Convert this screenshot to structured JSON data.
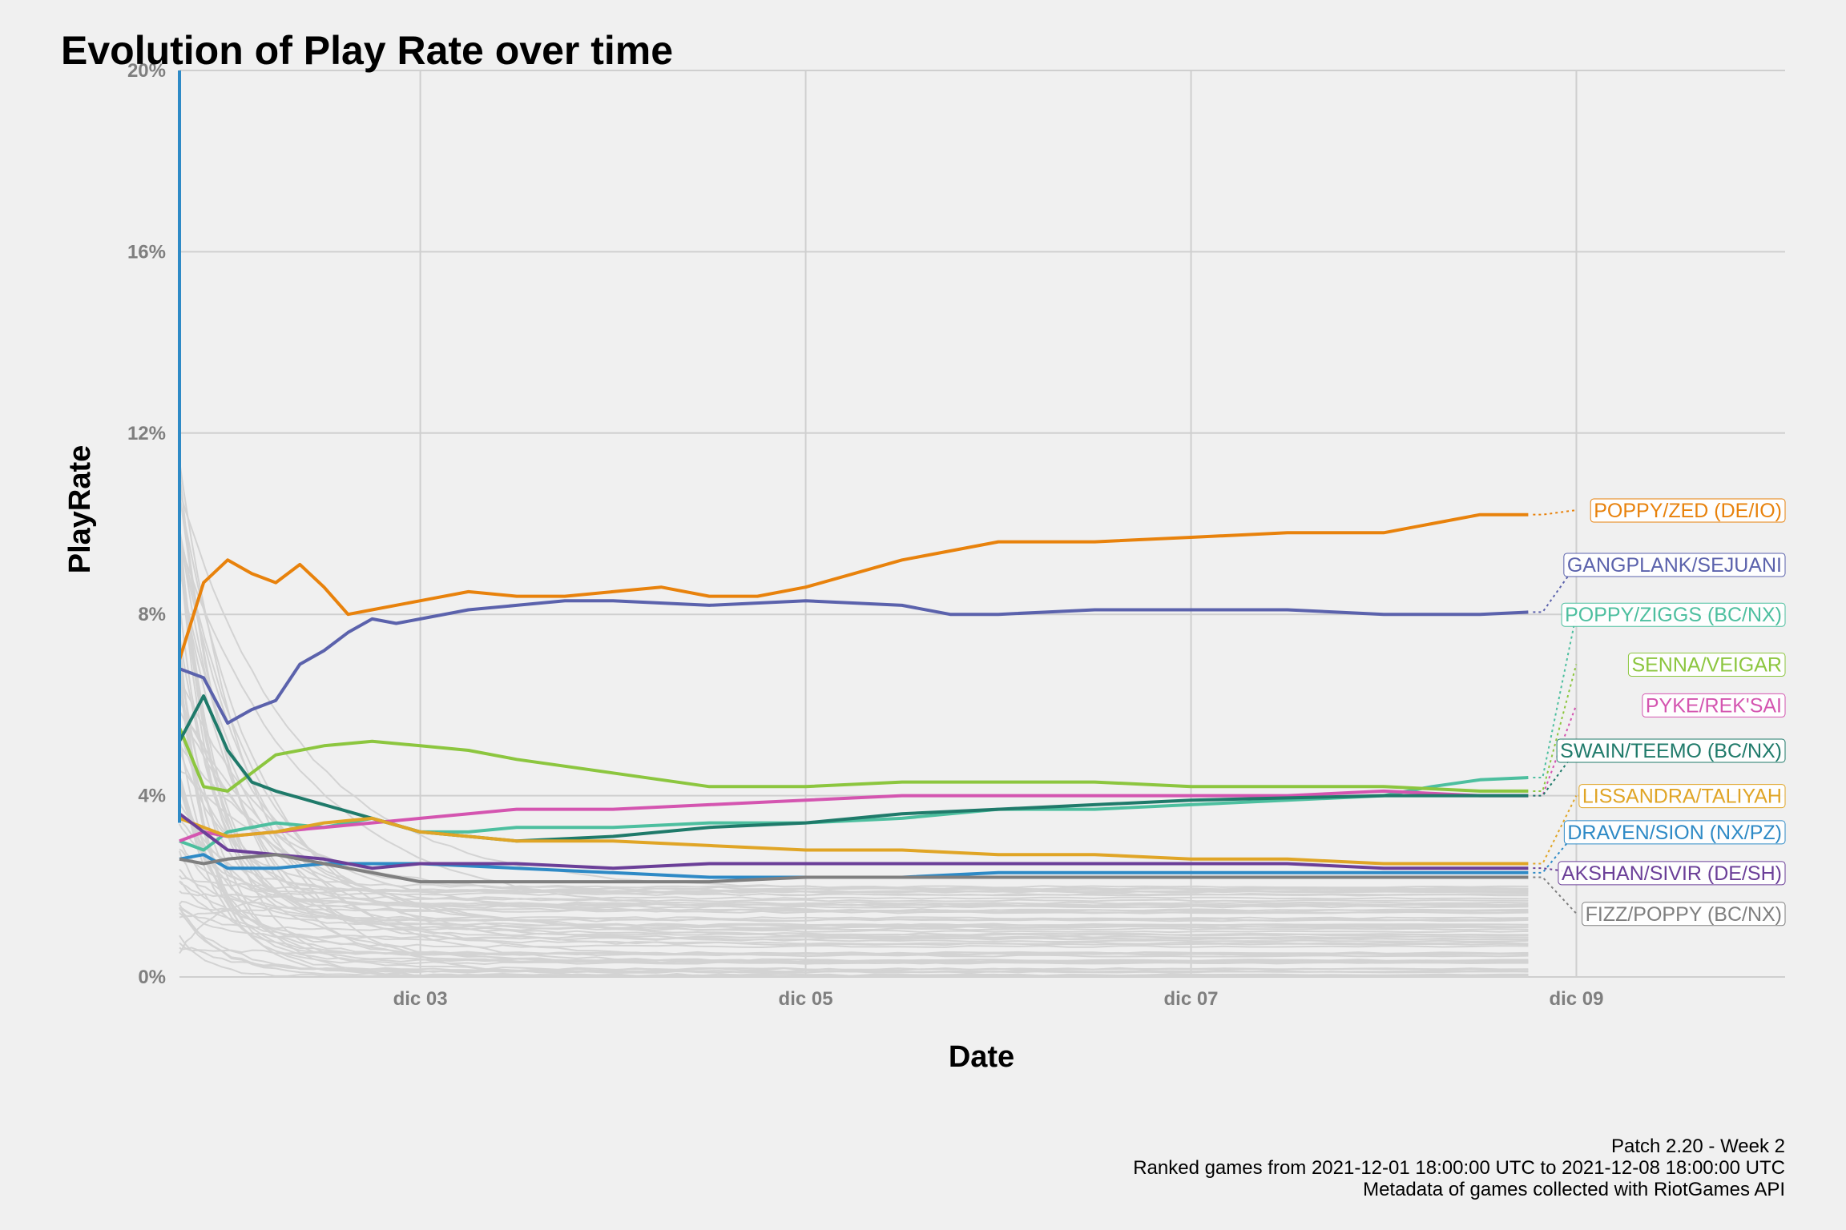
{
  "chart_data": {
    "type": "line",
    "title": "Evolution of Play Rate over time",
    "xlabel": "Date",
    "ylabel": "PlayRate",
    "x_range": [
      "2021-12-01 18:00",
      "2021-12-10 02:00"
    ],
    "x_ticks": [
      {
        "label": "dic 03",
        "date": "2021-12-03"
      },
      {
        "label": "dic 05",
        "date": "2021-12-05"
      },
      {
        "label": "dic 07",
        "date": "2021-12-07"
      },
      {
        "label": "dic 09",
        "date": "2021-12-09"
      }
    ],
    "ylim": [
      0,
      20
    ],
    "y_ticks": [
      {
        "label": "0%",
        "value": 0
      },
      {
        "label": "4%",
        "value": 4
      },
      {
        "label": "8%",
        "value": 8
      },
      {
        "label": "12%",
        "value": 12
      },
      {
        "label": "16%",
        "value": 16
      },
      {
        "label": "20%",
        "value": 20
      }
    ],
    "grid": true,
    "legend": "direct labels at right",
    "series": [
      {
        "name": "POPPY/ZED (DE/IO)",
        "color": "#e8820c",
        "label_value": 10.3,
        "x": [
          "2021-12-01 18:00",
          "2021-12-01 21:00",
          "2021-12-02 00:00",
          "2021-12-02 03:00",
          "2021-12-02 06:00",
          "2021-12-02 09:00",
          "2021-12-02 12:00",
          "2021-12-02 15:00",
          "2021-12-02 18:00",
          "2021-12-03 00:00",
          "2021-12-03 06:00",
          "2021-12-03 12:00",
          "2021-12-03 18:00",
          "2021-12-04 00:00",
          "2021-12-04 06:00",
          "2021-12-04 12:00",
          "2021-12-04 18:00",
          "2021-12-05 00:00",
          "2021-12-05 06:00",
          "2021-12-05 12:00",
          "2021-12-05 18:00",
          "2021-12-06 00:00",
          "2021-12-06 12:00",
          "2021-12-07 00:00",
          "2021-12-07 12:00",
          "2021-12-08 00:00",
          "2021-12-08 06:00",
          "2021-12-08 12:00",
          "2021-12-08 18:00"
        ],
        "y": [
          7.0,
          8.7,
          9.2,
          8.9,
          8.7,
          9.1,
          8.6,
          8.0,
          8.1,
          8.3,
          8.5,
          8.4,
          8.4,
          8.5,
          8.6,
          8.4,
          8.4,
          8.6,
          8.9,
          9.2,
          9.4,
          9.6,
          9.6,
          9.7,
          9.8,
          9.8,
          10.0,
          10.2,
          10.2
        ]
      },
      {
        "name": "GANGPLANK/SEJUANI",
        "color": "#5b62ac",
        "label_value": 9.1,
        "x": [
          "2021-12-01 18:00",
          "2021-12-01 21:00",
          "2021-12-02 00:00",
          "2021-12-02 03:00",
          "2021-12-02 06:00",
          "2021-12-02 09:00",
          "2021-12-02 12:00",
          "2021-12-02 15:00",
          "2021-12-02 18:00",
          "2021-12-02 21:00",
          "2021-12-03 00:00",
          "2021-12-03 06:00",
          "2021-12-03 12:00",
          "2021-12-03 18:00",
          "2021-12-04 00:00",
          "2021-12-04 12:00",
          "2021-12-05 00:00",
          "2021-12-05 12:00",
          "2021-12-05 18:00",
          "2021-12-06 00:00",
          "2021-12-06 12:00",
          "2021-12-07 00:00",
          "2021-12-07 12:00",
          "2021-12-08 00:00",
          "2021-12-08 12:00",
          "2021-12-08 18:00"
        ],
        "y": [
          6.8,
          6.6,
          5.6,
          5.9,
          6.1,
          6.9,
          7.2,
          7.6,
          7.9,
          7.8,
          7.9,
          8.1,
          8.2,
          8.3,
          8.3,
          8.2,
          8.3,
          8.2,
          8.0,
          8.0,
          8.1,
          8.1,
          8.1,
          8.0,
          8.0,
          8.05
        ]
      },
      {
        "name": "POPPY/ZIGGS (BC/NX)",
        "color": "#4dbf9f",
        "label_value": 8.0,
        "x": [
          "2021-12-01 18:00",
          "2021-12-01 21:00",
          "2021-12-02 00:00",
          "2021-12-02 06:00",
          "2021-12-02 12:00",
          "2021-12-02 18:00",
          "2021-12-03 00:00",
          "2021-12-03 06:00",
          "2021-12-03 12:00",
          "2021-12-04 00:00",
          "2021-12-04 12:00",
          "2021-12-05 00:00",
          "2021-12-05 12:00",
          "2021-12-06 00:00",
          "2021-12-06 12:00",
          "2021-12-07 00:00",
          "2021-12-07 12:00",
          "2021-12-08 00:00",
          "2021-12-08 06:00",
          "2021-12-08 12:00",
          "2021-12-08 18:00"
        ],
        "y": [
          3.0,
          2.8,
          3.2,
          3.4,
          3.3,
          3.5,
          3.2,
          3.2,
          3.3,
          3.3,
          3.4,
          3.4,
          3.5,
          3.7,
          3.7,
          3.8,
          3.9,
          4.0,
          4.2,
          4.35,
          4.4
        ]
      },
      {
        "name": "SENNA/VEIGAR",
        "color": "#8cc63f",
        "label_value": 6.9,
        "x": [
          "2021-12-01 18:00",
          "2021-12-01 21:00",
          "2021-12-02 00:00",
          "2021-12-02 06:00",
          "2021-12-02 12:00",
          "2021-12-02 18:00",
          "2021-12-03 00:00",
          "2021-12-03 06:00",
          "2021-12-03 12:00",
          "2021-12-04 00:00",
          "2021-12-04 12:00",
          "2021-12-05 00:00",
          "2021-12-05 12:00",
          "2021-12-06 00:00",
          "2021-12-06 12:00",
          "2021-12-07 00:00",
          "2021-12-07 12:00",
          "2021-12-08 00:00",
          "2021-12-08 12:00",
          "2021-12-08 18:00"
        ],
        "y": [
          5.5,
          4.2,
          4.1,
          4.9,
          5.1,
          5.2,
          5.1,
          5.0,
          4.8,
          4.5,
          4.2,
          4.2,
          4.3,
          4.3,
          4.3,
          4.2,
          4.2,
          4.2,
          4.1,
          4.1
        ]
      },
      {
        "name": "PYKE/REK'SAI",
        "color": "#d455b0",
        "label_value": 6.0,
        "x": [
          "2021-12-01 18:00",
          "2021-12-01 21:00",
          "2021-12-02 00:00",
          "2021-12-02 06:00",
          "2021-12-02 12:00",
          "2021-12-02 18:00",
          "2021-12-03 00:00",
          "2021-12-03 06:00",
          "2021-12-03 12:00",
          "2021-12-04 00:00",
          "2021-12-04 12:00",
          "2021-12-05 00:00",
          "2021-12-05 12:00",
          "2021-12-06 00:00",
          "2021-12-06 12:00",
          "2021-12-07 00:00",
          "2021-12-07 12:00",
          "2021-12-08 00:00",
          "2021-12-08 12:00",
          "2021-12-08 18:00"
        ],
        "y": [
          3.0,
          3.2,
          3.1,
          3.2,
          3.3,
          3.4,
          3.5,
          3.6,
          3.7,
          3.7,
          3.8,
          3.9,
          4.0,
          4.0,
          4.0,
          4.0,
          4.0,
          4.1,
          4.0,
          4.0
        ]
      },
      {
        "name": "SWAIN/TEEMO (BC/NX)",
        "color": "#1f7a6a",
        "label_value": 5.0,
        "x": [
          "2021-12-01 18:00",
          "2021-12-01 21:00",
          "2021-12-02 00:00",
          "2021-12-02 03:00",
          "2021-12-02 06:00",
          "2021-12-02 12:00",
          "2021-12-02 18:00",
          "2021-12-03 00:00",
          "2021-12-03 06:00",
          "2021-12-03 12:00",
          "2021-12-04 00:00",
          "2021-12-04 12:00",
          "2021-12-05 00:00",
          "2021-12-05 12:00",
          "2021-12-06 00:00",
          "2021-12-06 12:00",
          "2021-12-07 00:00",
          "2021-12-07 12:00",
          "2021-12-08 00:00",
          "2021-12-08 12:00",
          "2021-12-08 18:00"
        ],
        "y": [
          5.2,
          6.2,
          5.0,
          4.3,
          4.1,
          3.8,
          3.5,
          3.2,
          3.1,
          3.0,
          3.1,
          3.3,
          3.4,
          3.6,
          3.7,
          3.8,
          3.9,
          3.95,
          4.0,
          4.0,
          4.0
        ]
      },
      {
        "name": "LISSANDRA/TALIYAH",
        "color": "#e0a526",
        "label_value": 4.0,
        "x": [
          "2021-12-01 18:00",
          "2021-12-01 21:00",
          "2021-12-02 00:00",
          "2021-12-02 06:00",
          "2021-12-02 12:00",
          "2021-12-02 18:00",
          "2021-12-03 00:00",
          "2021-12-03 06:00",
          "2021-12-03 12:00",
          "2021-12-04 00:00",
          "2021-12-04 12:00",
          "2021-12-05 00:00",
          "2021-12-05 12:00",
          "2021-12-06 00:00",
          "2021-12-06 12:00",
          "2021-12-07 00:00",
          "2021-12-07 12:00",
          "2021-12-08 00:00",
          "2021-12-08 12:00",
          "2021-12-08 18:00"
        ],
        "y": [
          3.5,
          3.3,
          3.1,
          3.2,
          3.4,
          3.5,
          3.2,
          3.1,
          3.0,
          3.0,
          2.9,
          2.8,
          2.8,
          2.7,
          2.7,
          2.6,
          2.6,
          2.5,
          2.5,
          2.5
        ]
      },
      {
        "name": "DRAVEN/SION (NX/PZ)",
        "color": "#2e8ac6",
        "label_value": 3.2,
        "x": [
          "2021-12-01 18:00",
          "2021-12-01 21:00",
          "2021-12-02 00:00",
          "2021-12-02 06:00",
          "2021-12-02 12:00",
          "2021-12-02 18:00",
          "2021-12-03 00:00",
          "2021-12-03 12:00",
          "2021-12-04 00:00",
          "2021-12-04 12:00",
          "2021-12-05 00:00",
          "2021-12-05 12:00",
          "2021-12-06 00:00",
          "2021-12-06 12:00",
          "2021-12-07 00:00",
          "2021-12-07 12:00",
          "2021-12-08 00:00",
          "2021-12-08 12:00",
          "2021-12-08 18:00"
        ],
        "y": [
          2.6,
          2.7,
          2.4,
          2.4,
          2.5,
          2.5,
          2.5,
          2.4,
          2.3,
          2.2,
          2.2,
          2.2,
          2.3,
          2.3,
          2.3,
          2.3,
          2.3,
          2.3,
          2.3
        ]
      },
      {
        "name": "AKSHAN/SIVIR (DE/SH)",
        "color": "#6b3f98",
        "label_value": 2.3,
        "x": [
          "2021-12-01 18:00",
          "2021-12-01 21:00",
          "2021-12-02 00:00",
          "2021-12-02 06:00",
          "2021-12-02 12:00",
          "2021-12-02 18:00",
          "2021-12-03 00:00",
          "2021-12-03 12:00",
          "2021-12-04 00:00",
          "2021-12-04 12:00",
          "2021-12-05 00:00",
          "2021-12-05 12:00",
          "2021-12-06 00:00",
          "2021-12-06 12:00",
          "2021-12-07 00:00",
          "2021-12-07 12:00",
          "2021-12-08 00:00",
          "2021-12-08 12:00",
          "2021-12-08 18:00"
        ],
        "y": [
          3.6,
          3.2,
          2.8,
          2.7,
          2.6,
          2.4,
          2.5,
          2.5,
          2.4,
          2.5,
          2.5,
          2.5,
          2.5,
          2.5,
          2.5,
          2.5,
          2.4,
          2.4,
          2.4
        ]
      },
      {
        "name": "FIZZ/POPPY (BC/NX)",
        "color": "#7f7f7f",
        "label_value": 1.4,
        "x": [
          "2021-12-01 18:00",
          "2021-12-01 21:00",
          "2021-12-02 00:00",
          "2021-12-02 06:00",
          "2021-12-02 12:00",
          "2021-12-02 18:00",
          "2021-12-03 00:00",
          "2021-12-03 12:00",
          "2021-12-04 00:00",
          "2021-12-04 12:00",
          "2021-12-05 00:00",
          "2021-12-05 12:00",
          "2021-12-06 00:00",
          "2021-12-06 12:00",
          "2021-12-07 00:00",
          "2021-12-07 12:00",
          "2021-12-08 00:00",
          "2021-12-08 12:00",
          "2021-12-08 18:00"
        ],
        "y": [
          2.6,
          2.5,
          2.6,
          2.7,
          2.5,
          2.3,
          2.1,
          2.1,
          2.1,
          2.1,
          2.2,
          2.2,
          2.2,
          2.2,
          2.2,
          2.2,
          2.2,
          2.2,
          2.2
        ]
      }
    ],
    "background_series_count": 60,
    "background_color": "#d3d3d3",
    "caption": [
      "Patch 2.20 - Week 2",
      "Ranked games from 2021-12-01 18:00:00 UTC to 2021-12-08 18:00:00 UTC",
      "Metadata of games collected with RiotGames API"
    ]
  }
}
